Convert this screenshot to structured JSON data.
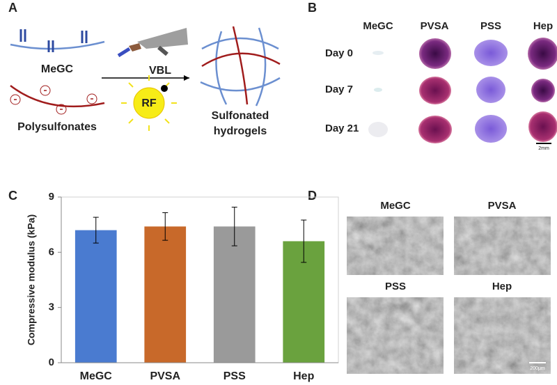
{
  "panels": {
    "A": {
      "label": "A",
      "texts": {
        "megc": "MeGC",
        "polysulfonates": "Polysulfonates",
        "vbl": "VBL",
        "rf": "RF",
        "product_line1": "Sulfonated",
        "product_line2": "hydrogels"
      }
    },
    "B": {
      "label": "B",
      "columns": [
        "MeGC",
        "PVSA",
        "PSS",
        "Hep"
      ],
      "rows": [
        "Day 0",
        "Day 7",
        "Day 21"
      ],
      "scale_bar": "2mm"
    },
    "C": {
      "label": "C"
    },
    "D": {
      "label": "D",
      "images": [
        "MeGC",
        "PVSA",
        "PSS",
        "Hep"
      ],
      "scale_bar": "200μm"
    }
  },
  "chart_data": {
    "type": "bar",
    "ylabel": "Compressive modulus (kPa)",
    "categories": [
      "MeGC",
      "PVSA",
      "PSS",
      "Hep"
    ],
    "values": [
      7.2,
      7.4,
      7.4,
      6.6
    ],
    "errors": [
      0.7,
      0.75,
      1.05,
      1.15
    ],
    "colors": [
      "#4a7bd0",
      "#c8692a",
      "#9a9a9a",
      "#6aa23e"
    ],
    "ylim": [
      0,
      9
    ],
    "yticks": [
      0,
      3,
      6,
      9
    ],
    "grid": false
  }
}
